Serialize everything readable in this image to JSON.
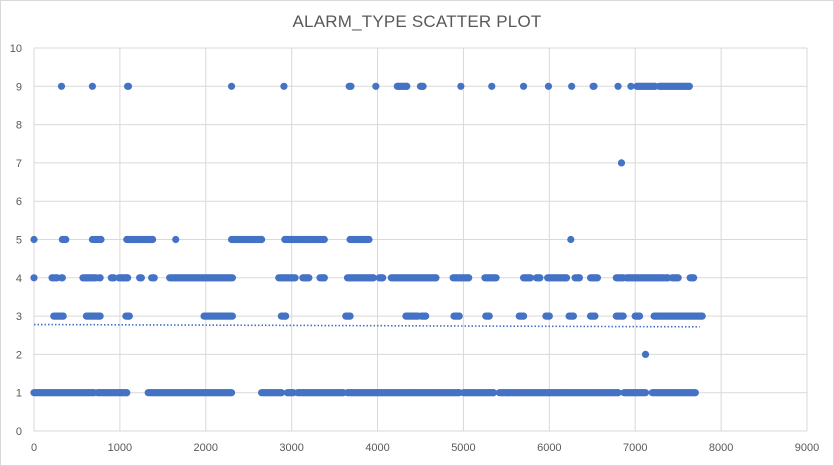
{
  "chart_data": {
    "type": "scatter",
    "title": "ALARM_TYPE SCATTER PLOT",
    "xlabel": "",
    "ylabel": "",
    "xlim": [
      0,
      9000
    ],
    "ylim": [
      0,
      10
    ],
    "x_ticks": [
      0,
      1000,
      2000,
      3000,
      4000,
      5000,
      6000,
      7000,
      8000,
      9000
    ],
    "y_ticks": [
      0,
      1,
      2,
      3,
      4,
      5,
      6,
      7,
      8,
      9,
      10
    ],
    "grid": true,
    "legend": "none",
    "marker_color": "#4472c4",
    "trendline": {
      "type": "linear",
      "style": "dotted",
      "color": "#4472c4",
      "x": [
        0,
        7750
      ],
      "y": [
        2.78,
        2.72
      ]
    },
    "series": [
      {
        "segments": [
          {
            "y": 1,
            "x_ranges": [
              [
                0,
                700
              ],
              [
                740,
                1080
              ],
              [
                1330,
                2300
              ],
              [
                2650,
                2880
              ],
              [
                2950,
                3020
              ],
              [
                3070,
                3600
              ],
              [
                3650,
                4950
              ],
              [
                5000,
                5350
              ],
              [
                5420,
                6800
              ],
              [
                6870,
                7120
              ],
              [
                7200,
                7700
              ]
            ]
          },
          {
            "y": 3,
            "x_ranges": [
              [
                230,
                340
              ],
              [
                610,
                770
              ],
              [
                1070,
                1110
              ],
              [
                1980,
                2310
              ],
              [
                2880,
                2930
              ],
              [
                3630,
                3680
              ],
              [
                4330,
                4470
              ],
              [
                4510,
                4560
              ],
              [
                4890,
                4950
              ],
              [
                5260,
                5300
              ],
              [
                5650,
                5700
              ],
              [
                5960,
                6000
              ],
              [
                6230,
                6280
              ],
              [
                6480,
                6530
              ],
              [
                6780,
                6860
              ],
              [
                7000,
                7050
              ],
              [
                7220,
                7780
              ]
            ]
          },
          {
            "y": 4,
            "x_ranges": [
              [
                0,
                0
              ],
              [
                210,
                230
              ],
              [
                250,
                270
              ],
              [
                320,
                330
              ],
              [
                570,
                720
              ],
              [
                760,
                770
              ],
              [
                900,
                930
              ],
              [
                990,
                1090
              ],
              [
                1230,
                1250
              ],
              [
                1370,
                1400
              ],
              [
                1580,
                2310
              ],
              [
                2850,
                3040
              ],
              [
                3130,
                3200
              ],
              [
                3330,
                3380
              ],
              [
                3650,
                3950
              ],
              [
                4020,
                4060
              ],
              [
                4160,
                4680
              ],
              [
                4880,
                5060
              ],
              [
                5250,
                5380
              ],
              [
                5700,
                5780
              ],
              [
                5850,
                5890
              ],
              [
                5980,
                6200
              ],
              [
                6300,
                6350
              ],
              [
                6480,
                6560
              ],
              [
                6780,
                6860
              ],
              [
                6900,
                7330
              ],
              [
                7350,
                7380
              ],
              [
                7430,
                7500
              ],
              [
                7640,
                7680
              ]
            ]
          },
          {
            "y": 5,
            "x_ranges": [
              [
                0,
                0
              ],
              [
                330,
                370
              ],
              [
                680,
                780
              ],
              [
                1080,
                1380
              ],
              [
                1650,
                1650
              ],
              [
                2300,
                2650
              ],
              [
                2920,
                3380
              ],
              [
                3680,
                3900
              ],
              [
                6250,
                6250
              ]
            ]
          },
          {
            "y": 9,
            "x_ranges": [
              [
                320,
                320
              ],
              [
                680,
                680
              ],
              [
                1090,
                1100
              ],
              [
                2300,
                2300
              ],
              [
                2910,
                2910
              ],
              [
                3670,
                3690
              ],
              [
                3980,
                3980
              ],
              [
                4230,
                4340
              ],
              [
                4500,
                4530
              ],
              [
                4970,
                4970
              ],
              [
                5330,
                5330
              ],
              [
                5700,
                5700
              ],
              [
                5990,
                5990
              ],
              [
                6260,
                6260
              ],
              [
                6510,
                6520
              ],
              [
                6800,
                6800
              ],
              [
                6950,
                6950
              ],
              [
                7020,
                7230
              ],
              [
                7280,
                7630
              ]
            ]
          },
          {
            "y": 7,
            "x_ranges": [
              [
                6840,
                6840
              ]
            ]
          },
          {
            "y": 2,
            "x_ranges": [
              [
                7120,
                7120
              ]
            ]
          }
        ]
      }
    ]
  }
}
